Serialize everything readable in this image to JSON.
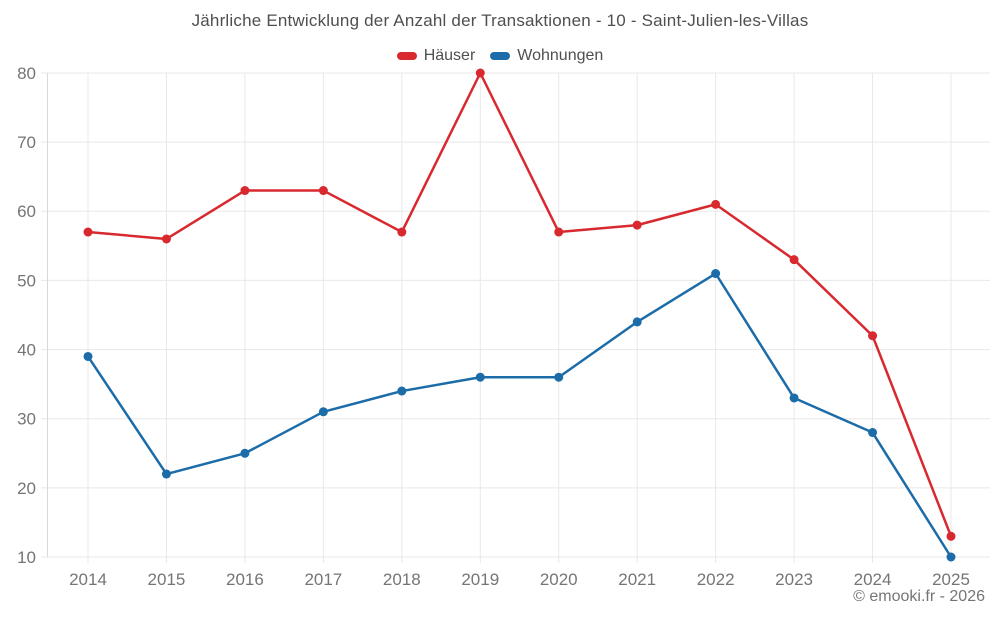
{
  "header": {
    "title": "Jährliche Entwicklung der Anzahl der Transaktionen - 10 - Saint-Julien-les-Villas"
  },
  "footer": {
    "credit": "© emooki.fr - 2026"
  },
  "colors": {
    "grid": "#e8e8e8",
    "axis_line": "#d9d9d9",
    "axis_text": "#757575",
    "heading_text": "#4f4f4f"
  },
  "chart_data": {
    "type": "line",
    "title": "Jährliche Entwicklung der Anzahl der Transaktionen - 10 - Saint-Julien-les-Villas",
    "categories": [
      "2014",
      "2015",
      "2016",
      "2017",
      "2018",
      "2019",
      "2020",
      "2021",
      "2022",
      "2023",
      "2024",
      "2025"
    ],
    "series": [
      {
        "name": "Häuser",
        "color": "#d8292f",
        "values": [
          57,
          56,
          63,
          63,
          57,
          80,
          57,
          58,
          61,
          53,
          42,
          13
        ]
      },
      {
        "name": "Wohnungen",
        "color": "#1b6ca8",
        "values": [
          39,
          22,
          25,
          31,
          34,
          36,
          36,
          44,
          51,
          33,
          28,
          10
        ]
      }
    ],
    "xlabel": "",
    "ylabel": "",
    "ylim": [
      10,
      80
    ],
    "ytick_step": 10,
    "grid": true,
    "legend_position": "top",
    "marker": "circle"
  }
}
